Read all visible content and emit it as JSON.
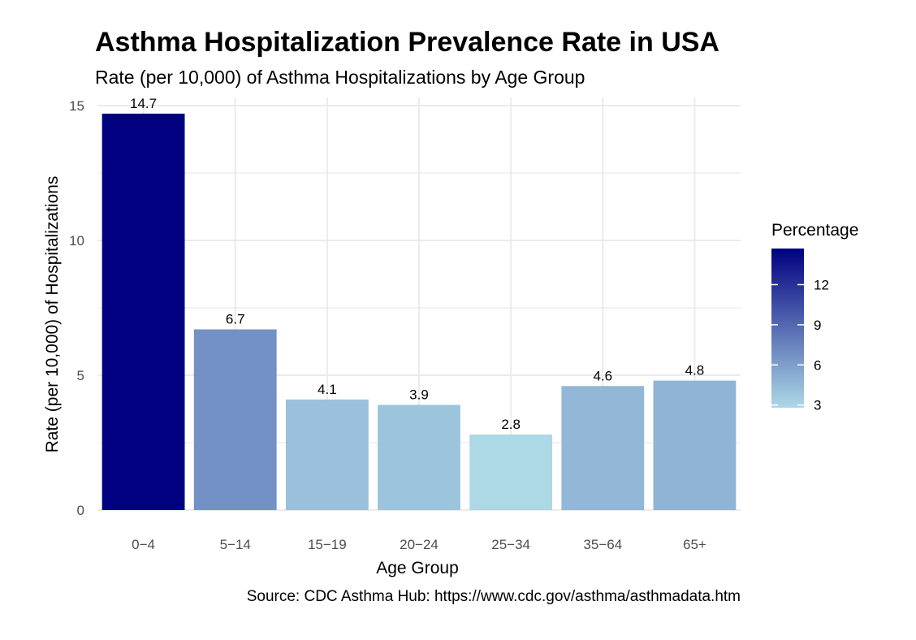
{
  "chart_data": {
    "type": "bar",
    "title": "Asthma Hospitalization Prevalence Rate in USA",
    "subtitle": "Rate (per 10,000) of Asthma Hospitalizations by Age Group",
    "xlabel": "Age Group",
    "ylabel": "Rate (per 10,000) of Hospitalizations",
    "caption": "Source: CDC Asthma Hub: https://www.cdc.gov/asthma/asthmadata.htm",
    "categories": [
      "0−4",
      "5−14",
      "15−19",
      "20−24",
      "25−34",
      "35−64",
      "65+"
    ],
    "values": [
      14.7,
      6.7,
      4.1,
      3.9,
      2.8,
      4.6,
      4.8
    ],
    "data_labels": [
      "14.7",
      "6.7",
      "4.1",
      "3.9",
      "2.8",
      "4.6",
      "4.8"
    ],
    "ylim": [
      0,
      15
    ],
    "yticks": [
      0,
      5,
      10,
      15
    ],
    "ytick_labels": [
      "0",
      "5",
      "10",
      "15"
    ],
    "grid": true,
    "legend": {
      "title": "Percentage",
      "placement": "right",
      "type": "colorbar",
      "range": [
        2.8,
        14.7
      ],
      "ticks": [
        3,
        6,
        9,
        12
      ],
      "tick_labels": [
        "3",
        "6",
        "9",
        "12"
      ],
      "low_color": "#ADD8E6",
      "high_color": "#000080"
    }
  }
}
